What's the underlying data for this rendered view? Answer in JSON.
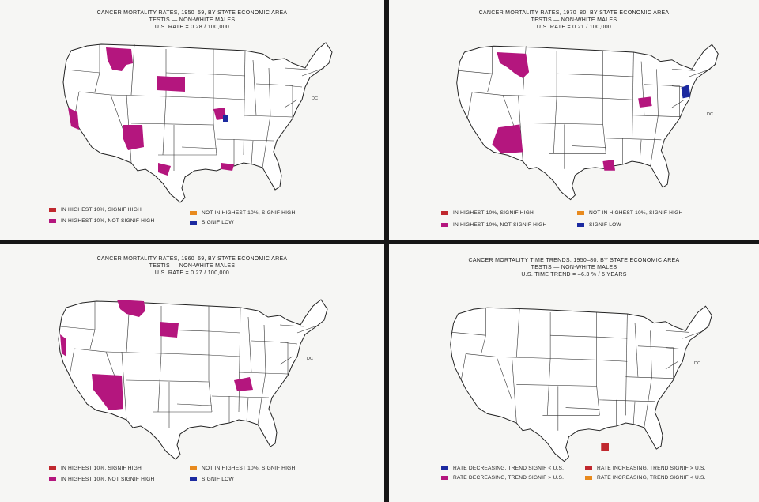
{
  "colors": {
    "signif_high": "#c0282e",
    "not_signif_high": "#b4167e",
    "not_highest_signif_high": "#e88a1e",
    "signif_low": "#1c2aa0",
    "rate_decreasing_lt": "#1c2aa0",
    "rate_decreasing_gt": "#b4167e",
    "rate_increasing_gt": "#c0282e",
    "rate_increasing_lt": "#e88a1e"
  },
  "panels": [
    {
      "title1": "CANCER MORTALITY RATES, 1950–59, BY STATE ECONOMIC AREA",
      "title2": "TESTIS — NON-WHITE MALES",
      "title3": "U.S. RATE = 0.28 / 100,000",
      "dc": "DC",
      "legend": [
        {
          "label": "IN HIGHEST 10%, SIGNIF HIGH",
          "color": "signif_high"
        },
        {
          "label": "IN HIGHEST 10%, NOT SIGNIF HIGH",
          "color": "not_signif_high"
        },
        {
          "label": "NOT IN HIGHEST 10%, SIGNIF HIGH",
          "color": "not_highest_signif_high"
        },
        {
          "label": "SIGNIF LOW",
          "color": "signif_low"
        }
      ]
    },
    {
      "title1": "CANCER MORTALITY RATES, 1970–80, BY STATE ECONOMIC AREA",
      "title2": "TESTIS — NON-WHITE MALES",
      "title3": "U.S. RATE = 0.21 / 100,000",
      "dc": "DC",
      "legend": [
        {
          "label": "IN HIGHEST 10%, SIGNIF HIGH",
          "color": "signif_high"
        },
        {
          "label": "IN HIGHEST 10%, NOT SIGNIF HIGH",
          "color": "not_signif_high"
        },
        {
          "label": "NOT IN HIGHEST 10%, SIGNIF HIGH",
          "color": "not_highest_signif_high"
        },
        {
          "label": "SIGNIF LOW",
          "color": "signif_low"
        }
      ]
    },
    {
      "title1": "CANCER MORTALITY RATES, 1960–69, BY STATE ECONOMIC AREA",
      "title2": "TESTIS — NON-WHITE MALES",
      "title3": "U.S. RATE = 0.27 / 100,000",
      "dc": "DC",
      "legend": [
        {
          "label": "IN HIGHEST 10%, SIGNIF HIGH",
          "color": "signif_high"
        },
        {
          "label": "IN HIGHEST 10%, NOT SIGNIF HIGH",
          "color": "not_signif_high"
        },
        {
          "label": "NOT IN HIGHEST 10%, SIGNIF HIGH",
          "color": "not_highest_signif_high"
        },
        {
          "label": "SIGNIF LOW",
          "color": "signif_low"
        }
      ]
    },
    {
      "title1": "CANCER MORTALITY TIME TRENDS, 1950–80, BY STATE ECONOMIC AREA",
      "title2": "TESTIS — NON-WHITE MALES",
      "title3": "U.S. TIME TREND = –6.3 % / 5 YEARS",
      "dc": "DC",
      "legend": [
        {
          "label": "RATE DECREASING, TREND SIGNIF < U.S.",
          "color": "rate_decreasing_lt"
        },
        {
          "label": "RATE DECREASING, TREND SIGNIF > U.S.",
          "color": "rate_decreasing_gt"
        },
        {
          "label": "RATE INCREASING, TREND SIGNIF > U.S.",
          "color": "rate_increasing_gt"
        },
        {
          "label": "RATE INCREASING, TREND SIGNIF < U.S.",
          "color": "rate_increasing_lt"
        }
      ]
    }
  ],
  "regions": [
    {
      "panel": 0,
      "name": "montana",
      "cat": "not_signif_high"
    },
    {
      "panel": 0,
      "name": "south-dakota-west",
      "cat": "not_signif_high"
    },
    {
      "panel": 0,
      "name": "arizona",
      "cat": "not_signif_high"
    },
    {
      "panel": 0,
      "name": "california",
      "cat": "not_signif_high"
    },
    {
      "panel": 0,
      "name": "texas",
      "cat": "not_signif_high"
    },
    {
      "panel": 0,
      "name": "southeast",
      "cat": "not_signif_high"
    },
    {
      "panel": 0,
      "name": "midwest",
      "cat": "not_signif_high"
    },
    {
      "panel": 0,
      "name": "illinois",
      "cat": "signif_low"
    },
    {
      "panel": 1,
      "name": "montana",
      "cat": "not_signif_high"
    },
    {
      "panel": 1,
      "name": "arizona",
      "cat": "not_signif_high"
    },
    {
      "panel": 1,
      "name": "louisiana",
      "cat": "not_signif_high"
    },
    {
      "panel": 1,
      "name": "northeast",
      "cat": "signif_low"
    },
    {
      "panel": 1,
      "name": "midwest",
      "cat": "not_signif_high"
    },
    {
      "panel": 2,
      "name": "montana",
      "cat": "not_signif_high"
    },
    {
      "panel": 2,
      "name": "south-dakota",
      "cat": "not_signif_high"
    },
    {
      "panel": 2,
      "name": "arizona",
      "cat": "not_signif_high"
    },
    {
      "panel": 2,
      "name": "california",
      "cat": "not_signif_high"
    },
    {
      "panel": 2,
      "name": "southeast",
      "cat": "not_signif_high"
    },
    {
      "panel": 3,
      "name": "louisiana",
      "cat": "rate_increasing_gt"
    }
  ]
}
